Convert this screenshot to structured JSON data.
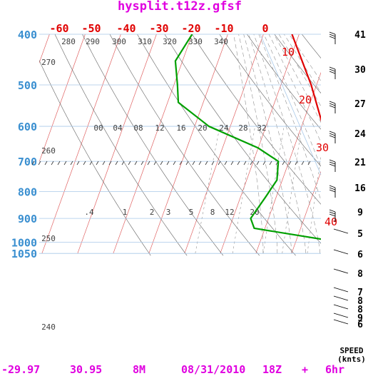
{
  "title": "hysplit.t12z.gfsf",
  "footer": {
    "lat": "-29.97",
    "lon": "30.95",
    "height": "8M",
    "date": "08/31/2010",
    "cycle": "18Z",
    "plus": "+",
    "forecast": "6hr"
  },
  "speed_label": {
    "line1": "SPEED",
    "line2": "(knts)"
  },
  "colors": {
    "title": "#e000e0",
    "temperature": "#e00000",
    "dewpoint": "#00a000",
    "pressure_label": "#3a8fd0",
    "isotherm": "#e06060",
    "dry_adiabat": "#606060",
    "moist_adiabat": "#909090",
    "mixing_ratio": "#909090",
    "isobar": "#a8c8e8"
  },
  "chart_data": {
    "type": "line",
    "subtype": "skew-t log-p diagram",
    "ylabel": "",
    "xlabel": "",
    "pressure_ticks": [
      400,
      500,
      600,
      700,
      800,
      900,
      1000,
      1050
    ],
    "pressure_range": [
      400,
      1050
    ],
    "temperature_labels_top": [
      "-60",
      "-50",
      "-40",
      "-30",
      "-20",
      "-10",
      "0"
    ],
    "temperature_labels_right": [
      "10",
      "20",
      "30",
      "40"
    ],
    "theta_labels_top": [
      "280",
      "290",
      "300",
      "310",
      "320",
      "330",
      "340"
    ],
    "theta_labels_left": [
      "270",
      "260",
      "250",
      "240"
    ],
    "theta_e_labels": [
      "00",
      "04",
      "08",
      "12",
      "16",
      "20",
      "24",
      "28",
      "32"
    ],
    "mixing_ratio_labels": [
      ".4",
      "1",
      "2",
      "3",
      "5",
      "8",
      "12",
      "20"
    ],
    "series": [
      {
        "name": "Temperature",
        "pressure": [
          400,
          500,
          600,
          680,
          760,
          820,
          900,
          960,
          990,
          1000
        ],
        "temperature": [
          -22,
          -11.5,
          -4,
          1,
          5,
          8.5,
          12.5,
          15,
          15,
          11
        ]
      },
      {
        "name": "Dewpoint",
        "pressure": [
          400,
          450,
          500,
          540,
          600,
          660,
          700,
          760,
          820,
          900,
          940,
          990
        ],
        "temperature": [
          -50,
          -52,
          -49,
          -47,
          -36,
          -20,
          -13,
          -11.5,
          -13,
          -15,
          -13,
          8.5
        ]
      }
    ],
    "wind_barb_height_labels": [
      "41",
      "30",
      "27",
      "24",
      "21",
      "16",
      "9",
      "5",
      "6",
      "8",
      "7",
      "8",
      "8",
      "9",
      "6"
    ],
    "grid": true
  }
}
